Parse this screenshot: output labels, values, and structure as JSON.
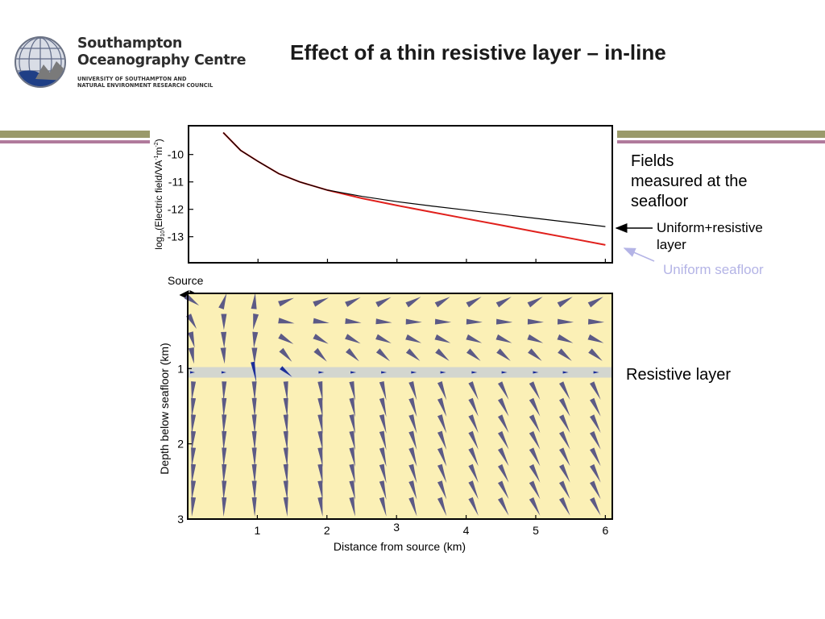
{
  "header": {
    "org_line1": "Southampton",
    "org_line2": "Oceanography Centre",
    "org_sub1": "UNIVERSITY OF SOUTHAMPTON AND",
    "org_sub2": "NATURAL ENVIRONMENT RESEARCH COUNCIL",
    "title": "Effect of a thin resistive layer – in-line"
  },
  "annotations": {
    "fields_line1": "Fields",
    "fields_line2": "measured at the",
    "fields_line3": "seafloor",
    "uniform_resistive_line1": "Uniform+resistive",
    "uniform_resistive_line2": "layer",
    "uniform_seafloor": "Uniform seafloor",
    "resistive_layer": "Resistive layer",
    "source": "Source"
  },
  "colors": {
    "uniform_resistive_series": "#000000",
    "uniform_seafloor_series": "#e0201c",
    "uniform_seafloor_label": "#b4b4e6",
    "section_background": "#fbf0b6",
    "resistive_band": "#d3d6cf",
    "arrow_fill": "#5c5a86",
    "arrow_fill_in_layer": "#1d2f9a",
    "olive_rule": "#9a9a6a",
    "mauve_rule": "#b07a9c"
  },
  "chart_data": [
    {
      "type": "line",
      "title": "",
      "xlabel": "",
      "ylabel_prefix": "log",
      "ylabel_sub": "10",
      "ylabel_mid": "(Electric field/VA",
      "ylabel_sup1": "-1",
      "ylabel_mid2": "m",
      "ylabel_sup2": "-2",
      "ylabel_end": ")",
      "xlim": [
        0,
        6.1
      ],
      "ylim": [
        -13.95,
        -8.95
      ],
      "xticks": [
        1,
        2,
        3,
        4,
        5,
        6
      ],
      "yticks": [
        -10,
        -11,
        -12,
        -13
      ],
      "ytick_labels": [
        "-10",
        "-11",
        "-12",
        "-13"
      ],
      "series": [
        {
          "name": "Uniform+resistive layer",
          "color": "#000000",
          "x": [
            0.5,
            0.75,
            1.0,
            1.3,
            1.6,
            2.0,
            2.5,
            3.0,
            3.5,
            4.0,
            4.5,
            5.0,
            5.5,
            6.0
          ],
          "y": [
            -9.2,
            -9.85,
            -10.25,
            -10.7,
            -11.0,
            -11.3,
            -11.53,
            -11.72,
            -11.88,
            -12.03,
            -12.18,
            -12.33,
            -12.48,
            -12.63
          ]
        },
        {
          "name": "Uniform seafloor",
          "color": "#e0201c",
          "x": [
            0.5,
            0.75,
            1.0,
            1.3,
            1.6,
            2.0,
            2.5,
            3.0,
            3.5,
            4.0,
            4.5,
            5.0,
            5.5,
            6.0
          ],
          "y": [
            -9.2,
            -9.85,
            -10.25,
            -10.7,
            -11.0,
            -11.3,
            -11.6,
            -11.86,
            -12.1,
            -12.34,
            -12.58,
            -12.82,
            -13.06,
            -13.3
          ]
        }
      ]
    },
    {
      "type": "vector-field",
      "xlabel": "Distance from source (km)",
      "ylabel": "Depth below seafloor (km)",
      "xlim": [
        0,
        6.1
      ],
      "ylim": [
        3,
        0
      ],
      "xticks": [
        1,
        2,
        3,
        4,
        5,
        6
      ],
      "xtick_labels": [
        "1",
        "2",
        "3",
        "4",
        "5",
        "6"
      ],
      "yticks": [
        1,
        2,
        3
      ],
      "ytick_labels": [
        "1",
        "2",
        "3"
      ],
      "resistive_layer_depth": [
        0.98,
        1.12
      ],
      "columns_x": [
        0.07,
        0.52,
        0.96,
        1.42,
        1.92,
        2.38,
        2.82,
        3.25,
        3.67,
        4.12,
        4.55,
        5.0,
        5.43,
        5.87
      ],
      "shallow_rows_depth": [
        0.1,
        0.38,
        0.62,
        0.83
      ],
      "layer_row_depth": 1.05,
      "deep_rows_depth": [
        1.3,
        1.52,
        1.74,
        1.96,
        2.18,
        2.4,
        2.62,
        2.84
      ]
    }
  ]
}
